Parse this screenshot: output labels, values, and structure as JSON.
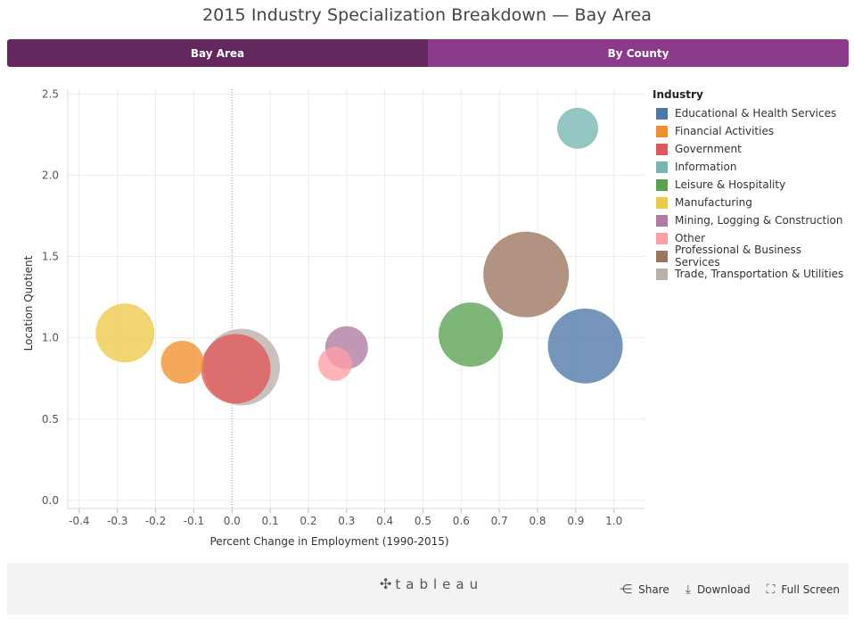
{
  "title": "2015 Industry Specialization Breakdown — Bay Area",
  "tabs": [
    {
      "label": "Bay Area",
      "active": true
    },
    {
      "label": "By County",
      "active": false
    }
  ],
  "footer": {
    "logo_text": "tableau",
    "actions": [
      {
        "label": "Share",
        "icon": "share-icon"
      },
      {
        "label": "Download",
        "icon": "download-icon"
      },
      {
        "label": "Full Screen",
        "icon": "fullscreen-icon"
      }
    ]
  },
  "legend": {
    "title": "Industry"
  },
  "colors": {
    "active_tab": "#63285d",
    "inactive_tab": "#8b3a8a"
  },
  "chart_data": {
    "type": "scatter",
    "title": "2015 Industry Specialization Breakdown — Bay Area",
    "xlabel": "Percent Change in Employment (1990-2015)",
    "ylabel": "Location Quotient",
    "xlim": [
      -0.43,
      1.08
    ],
    "ylim": [
      -0.05,
      2.53
    ],
    "xticks": [
      "-0.4",
      "-0.3",
      "-0.2",
      "-0.1",
      "0.0",
      "0.1",
      "0.2",
      "0.3",
      "0.4",
      "0.5",
      "0.6",
      "0.7",
      "0.8",
      "0.9",
      "1.0"
    ],
    "yticks": [
      "0.0",
      "0.5",
      "1.0",
      "1.5",
      "2.0",
      "2.5"
    ],
    "grid": true,
    "legend_position": "right",
    "size_encoding": "relative bubble size",
    "series": [
      {
        "name": "Educational & Health Services",
        "color": "#4e79a7",
        "x": 0.925,
        "y": 0.95,
        "size": 42
      },
      {
        "name": "Financial Activities",
        "color": "#f28e2b",
        "x": -0.13,
        "y": 0.85,
        "size": 24
      },
      {
        "name": "Government",
        "color": "#e15759",
        "x": 0.01,
        "y": 0.81,
        "size": 39
      },
      {
        "name": "Information",
        "color": "#76b7b2",
        "x": 0.905,
        "y": 2.29,
        "size": 23
      },
      {
        "name": "Leisure & Hospitality",
        "color": "#59a14f",
        "x": 0.625,
        "y": 1.02,
        "size": 36
      },
      {
        "name": "Manufacturing",
        "color": "#edc948",
        "x": -0.28,
        "y": 1.03,
        "size": 33
      },
      {
        "name": "Mining, Logging & Construction",
        "color": "#b07aa1",
        "x": 0.3,
        "y": 0.94,
        "size": 24
      },
      {
        "name": "Other",
        "color": "#ff9da7",
        "x": 0.27,
        "y": 0.84,
        "size": 19
      },
      {
        "name": "Professional & Business Services",
        "color": "#9c755f",
        "x": 0.77,
        "y": 1.39,
        "size": 48
      },
      {
        "name": "Trade, Transportation & Utilities",
        "color": "#bab0ac",
        "x": 0.025,
        "y": 0.82,
        "size": 43
      }
    ]
  }
}
